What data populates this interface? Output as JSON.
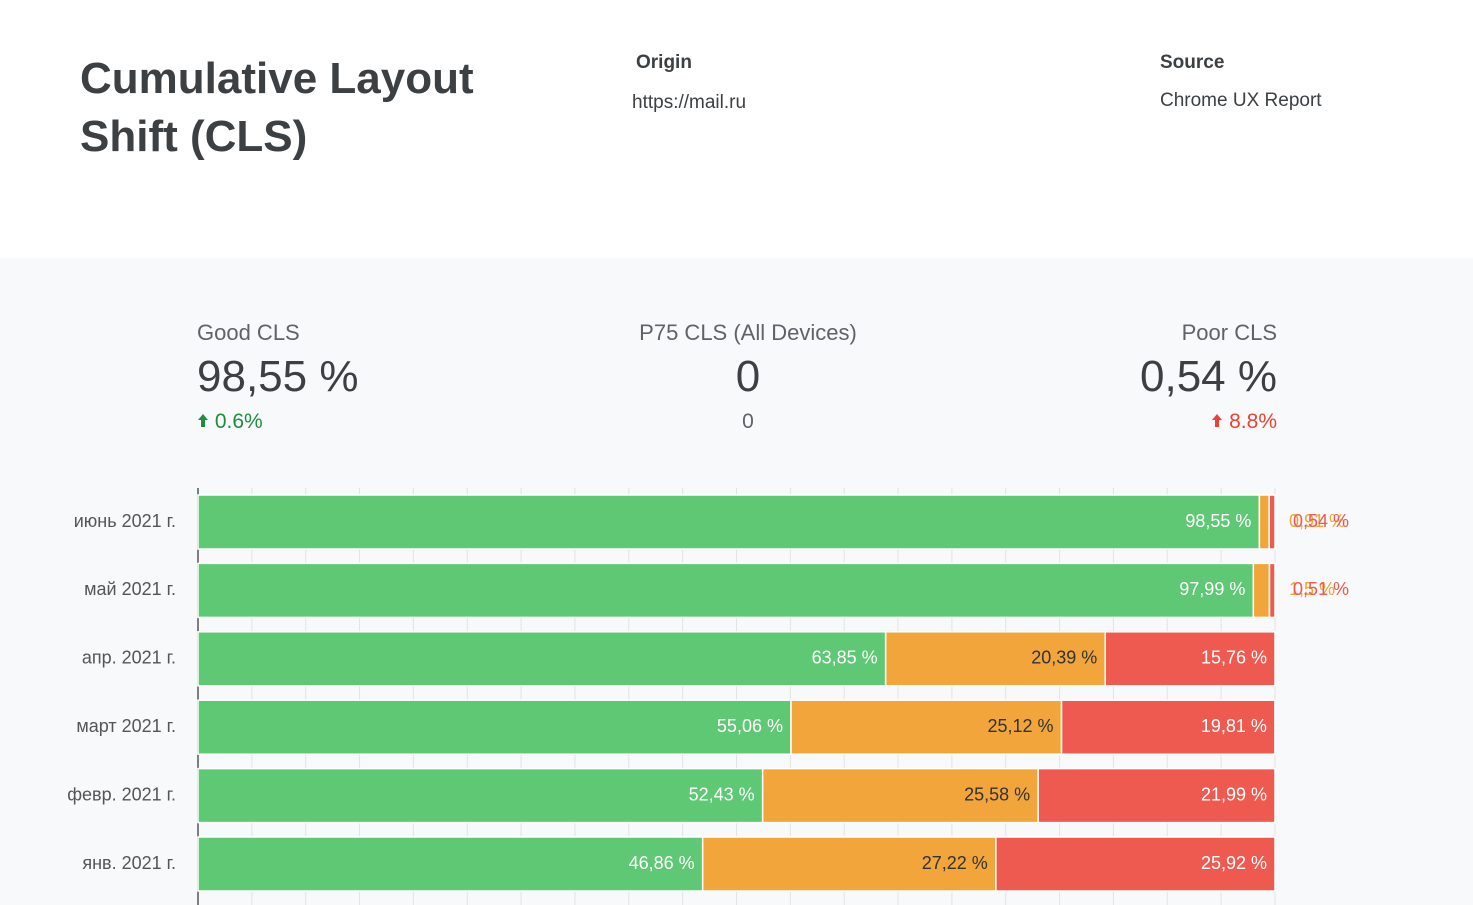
{
  "header": {
    "title": "Cumulative Layout Shift (CLS)",
    "origin_label": "Origin",
    "origin": "https://mail.ru",
    "source_label": "Source",
    "source": "Chrome UX Report"
  },
  "kpis": [
    {
      "label": "Good CLS",
      "value": "98,55 %",
      "change": "0.6%",
      "color": "#1e8e3e"
    },
    {
      "label": "P75 CLS (All Devices)",
      "value": "0",
      "change": "0",
      "color": "#5f6368"
    },
    {
      "label": "Poor CLS",
      "value": "0,54 %",
      "change": "8.8%",
      "color": "#ea4335"
    }
  ],
  "chart_data": {
    "type": "bar",
    "orientation": "horizontal",
    "stacked": true,
    "grid": true,
    "categories": [
      "июнь 2021 г.",
      "май 2021 г.",
      "апр. 2021 г.",
      "март 2021 г.",
      "февр. 2021 г.",
      "янв. 2021 г."
    ],
    "xlim": [
      0,
      100
    ],
    "xticks": [
      0,
      5,
      10,
      15,
      20,
      25,
      30,
      35,
      40,
      45,
      50,
      55,
      60,
      65,
      70,
      75,
      80,
      85,
      90,
      95,
      100
    ],
    "series": [
      {
        "color": "#5ec874",
        "label_color": "#ffffff",
        "values": [
          98.55,
          97.99,
          63.85,
          55.06,
          52.43,
          46.86
        ],
        "value_labels": [
          "98,55 %",
          "97,99 %",
          "63,85 %",
          "55,06 %",
          "52,43 %",
          "46,86 %"
        ]
      },
      {
        "color": "#f2a53a",
        "label_color": "#333333",
        "values": [
          0.91,
          1.5,
          20.39,
          25.12,
          25.58,
          27.22
        ],
        "value_labels": [
          "0,91 %",
          "1,5 %",
          "20,39 %",
          "25,12 %",
          "25,58 %",
          "27,22 %"
        ]
      },
      {
        "color": "#ee5a4f",
        "label_color": "#ffffff",
        "values": [
          0.54,
          0.51,
          15.76,
          19.81,
          21.99,
          25.92
        ],
        "value_labels": [
          "0,54 %",
          "0,51 %",
          "15,76 %",
          "19,81 %",
          "21,99 %",
          "25,92 %"
        ]
      }
    ]
  }
}
